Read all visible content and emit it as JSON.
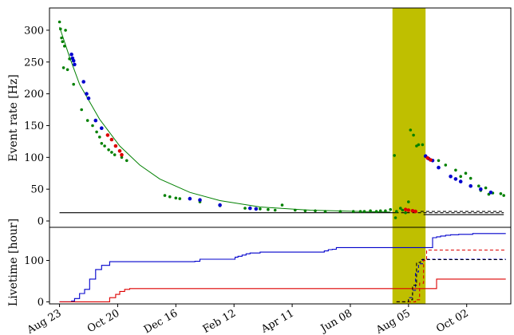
{
  "colors": {
    "blue": "#0000cc",
    "red": "#dd0000",
    "green": "#008000",
    "band": "#bfbf00",
    "black": "#000000"
  },
  "chart_data": [
    {
      "type": "scatter",
      "ylabel": "Event rate [Hz]",
      "ylim": [
        -10,
        335
      ],
      "yticks": [
        0,
        50,
        100,
        150,
        200,
        250,
        300
      ],
      "grid": false,
      "shaded_band": {
        "x": [
          332,
          365
        ],
        "color": "band"
      },
      "fit_curve": {
        "type": "line",
        "color": "green",
        "x": [
          0,
          10,
          20,
          40,
          60,
          80,
          100,
          130,
          160,
          200,
          250,
          300,
          330
        ],
        "y": [
          305,
          258,
          215,
          160,
          118,
          88,
          66,
          45,
          32,
          22,
          17,
          15,
          14
        ]
      },
      "green_points": {
        "x": [
          0,
          1,
          2,
          3,
          4,
          5,
          6,
          8,
          10,
          14,
          22,
          28,
          33,
          37,
          40,
          42,
          45,
          49,
          52,
          55,
          62,
          67,
          105,
          110,
          116,
          120,
          140,
          160,
          185,
          200,
          208,
          215,
          222,
          235,
          245,
          255,
          265,
          280,
          293,
          300,
          304,
          310,
          316,
          320,
          325,
          330,
          334,
          335,
          336,
          340,
          342,
          345,
          348,
          350,
          353,
          356,
          358,
          362,
          378,
          385,
          395,
          400,
          405,
          410,
          418,
          420,
          425,
          428,
          432,
          440,
          443
        ],
        "y": [
          313,
          302,
          288,
          282,
          241,
          275,
          300,
          238,
          255,
          215,
          175,
          158,
          150,
          140,
          132,
          122,
          118,
          112,
          108,
          104,
          100,
          95,
          40,
          38,
          36,
          35,
          30,
          24,
          20,
          19,
          18,
          17,
          25,
          17,
          16,
          16,
          15,
          15,
          15,
          15,
          15,
          16,
          15,
          16,
          16,
          18,
          103,
          5,
          15,
          20,
          17,
          13,
          30,
          143,
          135,
          118,
          120,
          120,
          95,
          88,
          80,
          70,
          75,
          67,
          55,
          48,
          52,
          42,
          44,
          43,
          40
        ]
      },
      "blue_points": {
        "x": [
          12,
          13,
          14,
          15,
          24,
          27,
          29,
          36,
          42,
          130,
          140,
          160,
          190,
          196,
          365,
          368,
          372,
          378,
          390,
          395,
          400,
          410,
          420,
          430
        ],
        "y": [
          262,
          256,
          252,
          246,
          219,
          200,
          193,
          158,
          146,
          35,
          33,
          25,
          20,
          19,
          102,
          98,
          95,
          84,
          70,
          66,
          62,
          55,
          50,
          45
        ]
      },
      "red_points": {
        "x": [
          48,
          52,
          56,
          60,
          62,
          345,
          348,
          352,
          355,
          367,
          370
        ],
        "y": [
          135,
          128,
          118,
          110,
          104,
          18,
          17,
          16,
          15,
          99,
          96
        ]
      },
      "baselines": [
        {
          "style": "solid",
          "color": "black",
          "x": [
            0,
            335
          ],
          "y": 13
        },
        {
          "style": "dashed",
          "color": "black",
          "x": [
            335,
            443
          ],
          "y": 13
        },
        {
          "style": "dashed",
          "color": "black",
          "x": [
            360,
            443
          ],
          "y": 15
        },
        {
          "style": "solid",
          "color": "black",
          "x": [
            363,
            443
          ],
          "y": 10
        }
      ]
    },
    {
      "type": "line",
      "ylabel": "Livetime [hour]",
      "ylim": [
        -5,
        180
      ],
      "yticks": [
        0,
        100
      ],
      "x_tick_labels": [
        "Aug 23",
        "Oct 20",
        "Dec 16",
        "Feb 12",
        "Apr 11",
        "Jun 08",
        "Aug 05",
        "Oct 02"
      ],
      "x_tick_positions": [
        0,
        58,
        116,
        174,
        232,
        290,
        348,
        406
      ],
      "xlim": [
        -10,
        450
      ],
      "series": [
        {
          "color": "blue",
          "style": "solid",
          "x": [
            0,
            10,
            12,
            15,
            20,
            25,
            30,
            36,
            42,
            50,
            135,
            140,
            170,
            175,
            178,
            182,
            186,
            190,
            200,
            205,
            260,
            264,
            268,
            272,
            276,
            332,
            359,
            362,
            372,
            376,
            380,
            385,
            390,
            398,
            408,
            412,
            420,
            445
          ],
          "y": [
            0,
            0,
            2,
            8,
            20,
            30,
            55,
            78,
            88,
            97,
            98,
            103,
            103,
            108,
            110,
            113,
            116,
            118,
            120,
            120,
            120,
            123,
            126,
            127,
            131,
            131,
            131,
            131,
            155,
            157,
            159,
            161,
            162,
            163,
            163,
            165,
            165,
            165
          ]
        },
        {
          "color": "red",
          "style": "solid",
          "x": [
            0,
            42,
            50,
            56,
            60,
            65,
            70,
            332,
            372,
            376,
            380,
            445
          ],
          "y": [
            0,
            0,
            10,
            18,
            25,
            30,
            32,
            32,
            32,
            55,
            55,
            55
          ]
        },
        {
          "color": "blue",
          "style": "dashed",
          "x": [
            336,
            345,
            348,
            352,
            355,
            358,
            362,
            445
          ],
          "y": [
            0,
            0,
            10,
            28,
            72,
            92,
            103,
            103
          ]
        },
        {
          "color": "red",
          "style": "dashed",
          "x": [
            336,
            352,
            355,
            359,
            363,
            366,
            445
          ],
          "y": [
            0,
            0,
            5,
            45,
            100,
            125,
            125
          ]
        },
        {
          "color": "black",
          "style": "dashed",
          "x": [
            336,
            345,
            348,
            352,
            356,
            360,
            445
          ],
          "y": [
            0,
            0,
            5,
            40,
            95,
            102,
            102
          ]
        }
      ]
    }
  ]
}
